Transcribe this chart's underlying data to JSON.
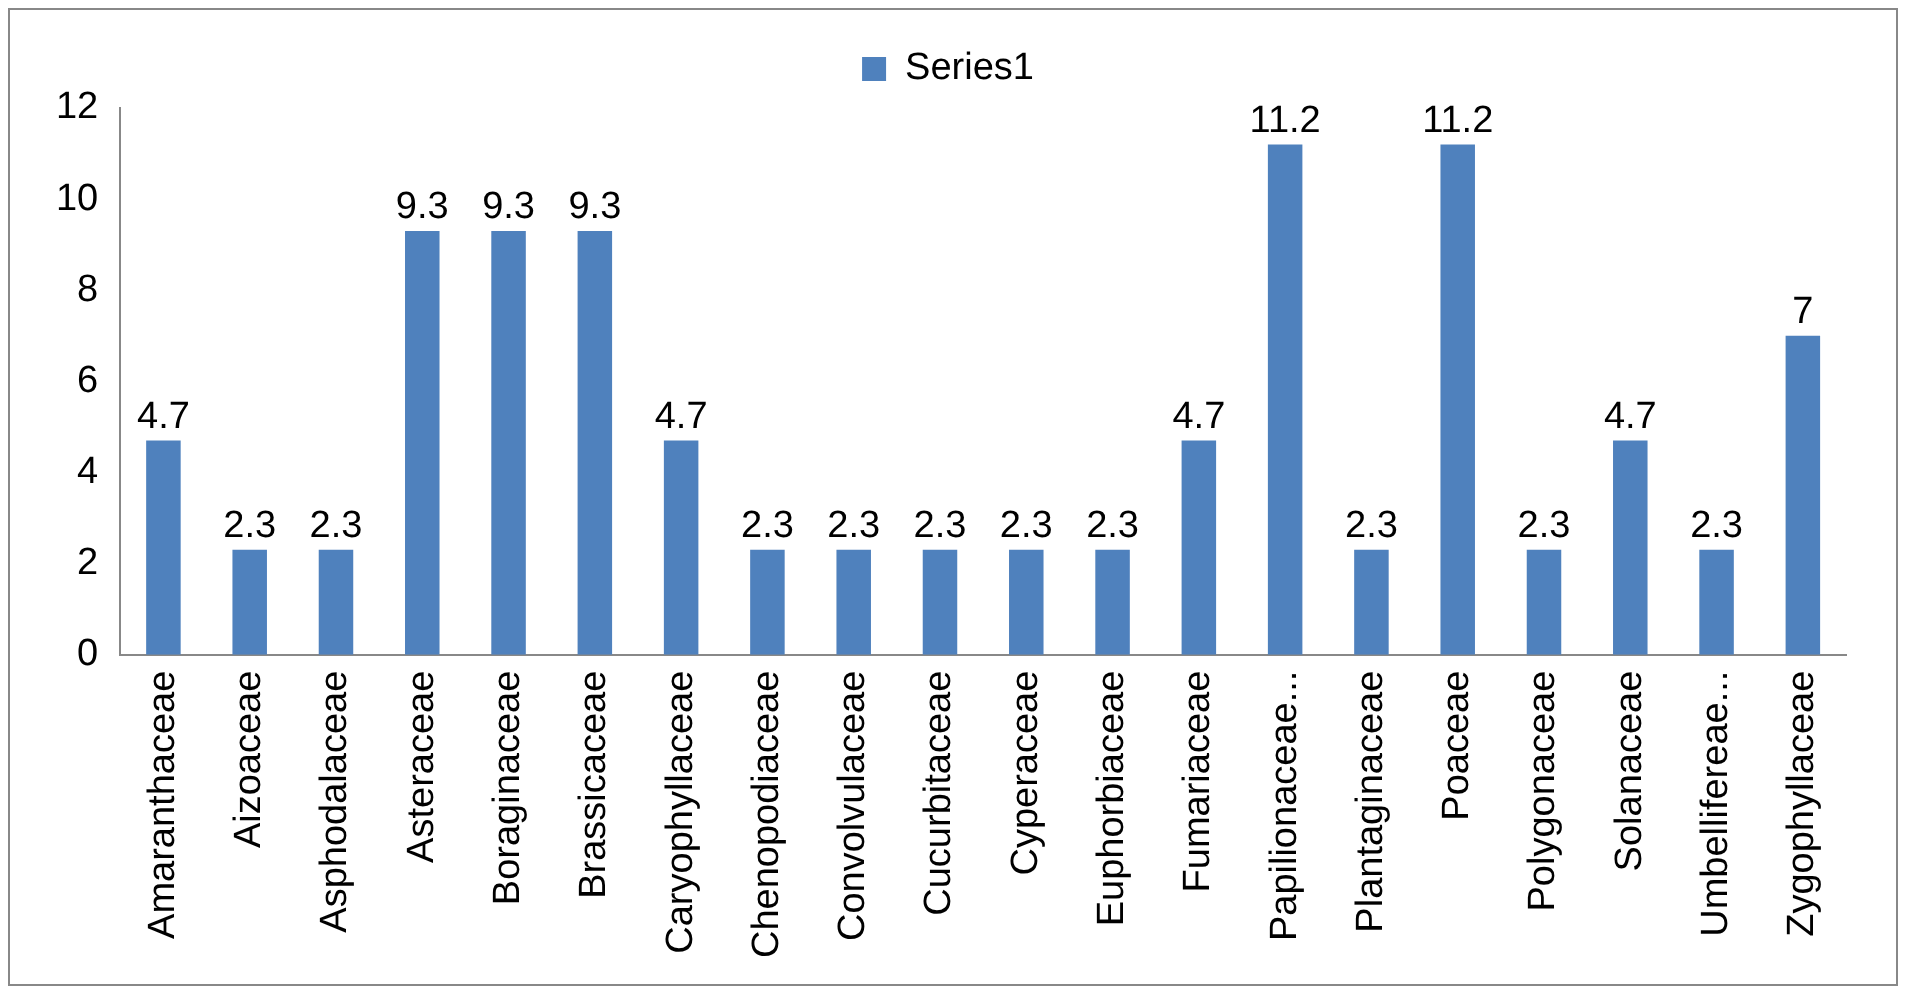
{
  "chart_data": {
    "type": "bar",
    "categories": [
      "Amaranthaceae",
      "Aizoaceae",
      "Asphodalaceae",
      "Asteraceae",
      "Boraginaceae",
      "Brassicaceae",
      "Caryophyllaceae",
      "Chenopodiaceae",
      "Convolvulaceae",
      "Cucurbitaceae",
      "Cyperaceae",
      "Euphorbiaceae",
      "Fumariaceae",
      "Papilionaceae...",
      "Plantaginaceae",
      "Poaceae",
      "Polygonaceae",
      "Solanaceae",
      "Umbellifereae...",
      "Zygophyllaceae"
    ],
    "series": [
      {
        "name": "Series1",
        "color": "#4f81bd",
        "values": [
          4.7,
          2.3,
          2.3,
          9.3,
          9.3,
          9.3,
          4.7,
          2.3,
          2.3,
          2.3,
          2.3,
          2.3,
          4.7,
          11.2,
          2.3,
          11.2,
          2.3,
          4.7,
          2.3,
          7
        ]
      }
    ],
    "ylim": [
      0,
      12
    ],
    "yticks": [
      0,
      2,
      4,
      6,
      8,
      10,
      12
    ],
    "grid": false,
    "legend": "top",
    "data_labels": true
  }
}
